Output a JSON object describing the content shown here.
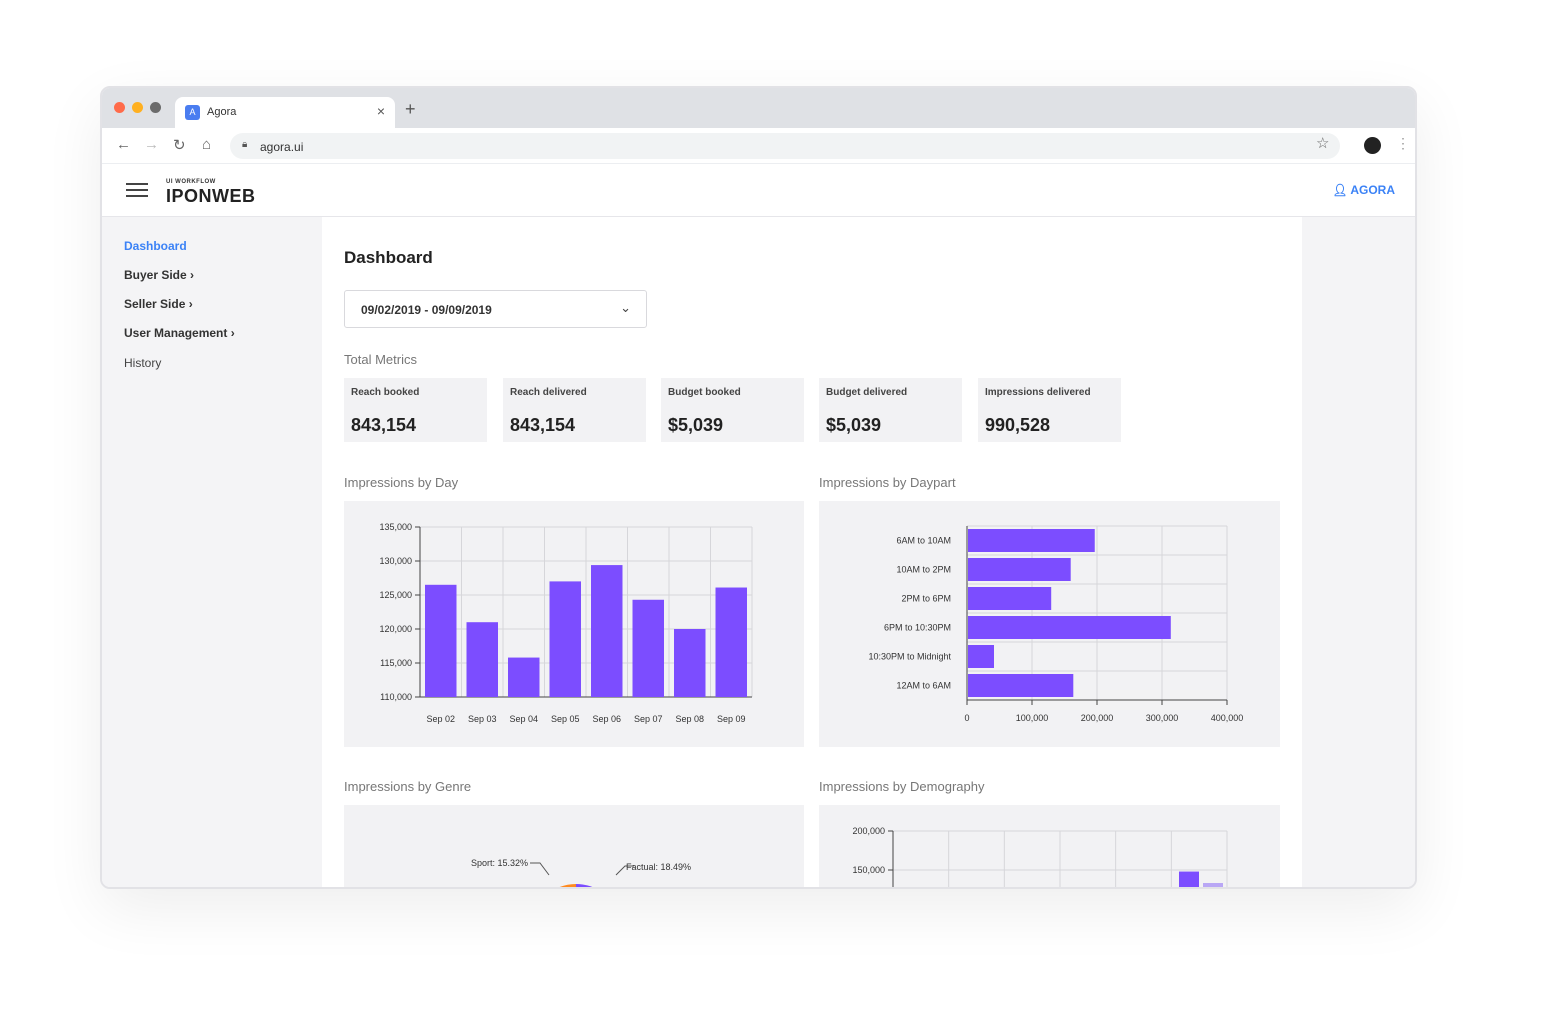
{
  "browser": {
    "tab_title": "Agora",
    "tab_close": "×",
    "new_tab": "+",
    "url": "agora.ui",
    "icons": [
      "back-arrow-icon",
      "forward-arrow-icon",
      "reload-icon",
      "home-icon",
      "lock-icon",
      "star-icon",
      "profile-icon",
      "kebab-menu-icon"
    ]
  },
  "app": {
    "logo_small": "UI WORKFLOW",
    "logo": "IPONWEB",
    "user": "AGORA"
  },
  "sidebar": {
    "items": [
      {
        "label": "Dashboard",
        "suffix": ""
      },
      {
        "label": "Buyer Side",
        "suffix": " ›"
      },
      {
        "label": "Seller Side",
        "suffix": " ›"
      },
      {
        "label": "User Management",
        "suffix": " ›"
      },
      {
        "label": "History",
        "suffix": ""
      }
    ]
  },
  "main": {
    "title": "Dashboard",
    "date_range": "09/02/2019 - 09/09/2019",
    "total_metrics_label": "Total Metrics",
    "metrics": [
      {
        "label": "Reach booked",
        "value": "843,154"
      },
      {
        "label": "Reach delivered",
        "value": "843,154"
      },
      {
        "label": "Budget booked",
        "value": "$5,039"
      },
      {
        "label": "Budget delivered",
        "value": "$5,039"
      },
      {
        "label": "Impressions delivered",
        "value": "990,528"
      }
    ]
  },
  "colors": {
    "accent": "#3b82f6",
    "bar": "#7c4dff",
    "orange": "#ff8a1f"
  },
  "chart_data": [
    {
      "type": "bar",
      "title": "Impressions by Day",
      "categories": [
        "Sep 02",
        "Sep 03",
        "Sep 04",
        "Sep 05",
        "Sep 06",
        "Sep 07",
        "Sep 08",
        "Sep 09"
      ],
      "values": [
        126500,
        121000,
        115800,
        127000,
        129400,
        124300,
        120000,
        126100
      ],
      "ylim": [
        110000,
        135000
      ],
      "yticks": [
        110000,
        115000,
        120000,
        125000,
        130000,
        135000
      ],
      "ytick_labels": [
        "110,000",
        "115,000",
        "120,000",
        "125,000",
        "130,000",
        "135,000"
      ],
      "grid": true
    },
    {
      "type": "bar",
      "orientation": "horizontal",
      "title": "Impressions by Daypart",
      "categories": [
        "6AM to 10AM",
        "10AM to 2PM",
        "2PM to 6PM",
        "6PM to 10:30PM",
        "10:30PM to Midnight",
        "12AM to 6AM"
      ],
      "values": [
        195000,
        158000,
        128000,
        312000,
        40000,
        162000
      ],
      "xlim": [
        0,
        400000
      ],
      "xticks": [
        0,
        100000,
        200000,
        300000,
        400000
      ],
      "xtick_labels": [
        "0",
        "100,000",
        "200,000",
        "300,000",
        "400,000"
      ],
      "grid": true
    },
    {
      "type": "pie",
      "title": "Impressions by Genre",
      "labels": [
        "Sport: 15.32%",
        "Factual: 18.49%"
      ],
      "values": [
        15.32,
        18.49
      ]
    },
    {
      "type": "bar",
      "title": "Impressions by Demography",
      "ylim": [
        0,
        200000
      ],
      "yticks": [
        150000,
        200000
      ],
      "ytick_labels": [
        "150,000",
        "200,000"
      ],
      "values": [
        148000
      ],
      "grid": true
    }
  ]
}
